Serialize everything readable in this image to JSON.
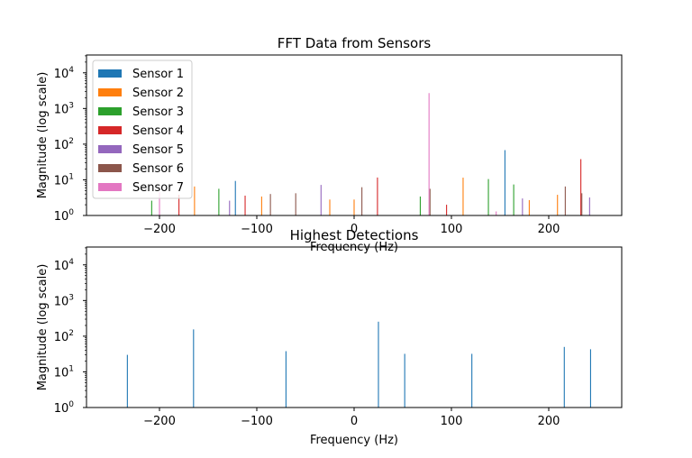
{
  "chart_data": [
    {
      "type": "bar",
      "title": "FFT Data from Sensors",
      "xlabel": "Frequency (Hz)",
      "ylabel": "Magnitude (log scale)",
      "xlim": [
        -275,
        275
      ],
      "ylim": [
        1,
        31623
      ],
      "yscale": "log",
      "xticks": [
        -200,
        -100,
        0,
        100,
        200
      ],
      "yticks": [
        1,
        10,
        100,
        1000,
        10000
      ],
      "grid": false,
      "legend_position": "upper-left",
      "series": [
        {
          "name": "Sensor 1",
          "color": "#1f77b4",
          "points": [
            {
              "x": -122,
              "y": 9.3
            },
            {
              "x": 155,
              "y": 68
            }
          ]
        },
        {
          "name": "Sensor 2",
          "color": "#ff7f0e",
          "points": [
            {
              "x": -164,
              "y": 6.5
            },
            {
              "x": -95,
              "y": 3.4
            },
            {
              "x": -25,
              "y": 2.8
            },
            {
              "x": 0,
              "y": 2.8
            },
            {
              "x": 112,
              "y": 11.5
            },
            {
              "x": 180,
              "y": 2.7
            },
            {
              "x": 209,
              "y": 3.8
            }
          ]
        },
        {
          "name": "Sensor 3",
          "color": "#2ca02c",
          "points": [
            {
              "x": -208,
              "y": 2.6
            },
            {
              "x": -139,
              "y": 5.6
            },
            {
              "x": 68,
              "y": 3.4
            },
            {
              "x": 138,
              "y": 10.5
            },
            {
              "x": 164,
              "y": 7.4
            }
          ]
        },
        {
          "name": "Sensor 4",
          "color": "#d62728",
          "points": [
            {
              "x": -180,
              "y": 3.8
            },
            {
              "x": -112,
              "y": 3.6
            },
            {
              "x": 24,
              "y": 11.6
            },
            {
              "x": 95,
              "y": 2.0
            },
            {
              "x": 233,
              "y": 38
            }
          ]
        },
        {
          "name": "Sensor 5",
          "color": "#9467bd",
          "points": [
            {
              "x": -128,
              "y": 2.6
            },
            {
              "x": -34,
              "y": 7.2
            },
            {
              "x": 173,
              "y": 3.0
            },
            {
              "x": 242,
              "y": 3.2
            }
          ]
        },
        {
          "name": "Sensor 6",
          "color": "#8c564b",
          "points": [
            {
              "x": -86,
              "y": 4.0
            },
            {
              "x": -60,
              "y": 4.2
            },
            {
              "x": 8,
              "y": 6.2
            },
            {
              "x": 78,
              "y": 5.6
            },
            {
              "x": 217,
              "y": 6.5
            },
            {
              "x": 234,
              "y": 4.2
            }
          ]
        },
        {
          "name": "Sensor 7",
          "color": "#e377c2",
          "points": [
            {
              "x": -200,
              "y": 4.5
            },
            {
              "x": 77,
              "y": 2700
            },
            {
              "x": 146,
              "y": 1.3
            }
          ]
        }
      ]
    },
    {
      "type": "bar",
      "title": "Highest Detections",
      "xlabel": "Frequency (Hz)",
      "ylabel": "Magnitude (log scale)",
      "xlim": [
        -275,
        275
      ],
      "ylim": [
        1,
        31623
      ],
      "yscale": "log",
      "xticks": [
        -200,
        -100,
        0,
        100,
        200
      ],
      "yticks": [
        1,
        10,
        100,
        1000,
        10000
      ],
      "grid": false,
      "color": "#1f77b4",
      "points": [
        {
          "x": -233,
          "y": 30
        },
        {
          "x": -165,
          "y": 155
        },
        {
          "x": -70,
          "y": 38
        },
        {
          "x": 25,
          "y": 255
        },
        {
          "x": 52,
          "y": 32
        },
        {
          "x": 121,
          "y": 32
        },
        {
          "x": 216,
          "y": 50
        },
        {
          "x": 243,
          "y": 43
        }
      ]
    }
  ]
}
